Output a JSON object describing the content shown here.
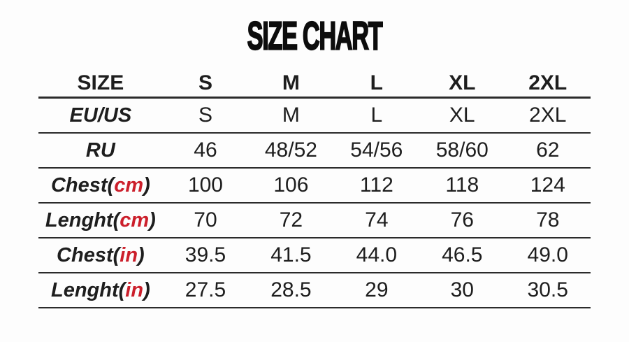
{
  "page": {
    "background": "#fdfdfd"
  },
  "colors": {
    "accent_red": "#cc1f2b",
    "text": "#1e1e1e",
    "line": "#2b2b2b"
  },
  "chart_data": {
    "type": "table",
    "title": "SIZE CHART",
    "header": {
      "label_column": "SIZE",
      "size_columns": [
        "S",
        "M",
        "L",
        "XL",
        "2XL"
      ]
    },
    "rows": [
      {
        "label": "EU/US",
        "unit": null,
        "label_red": true,
        "values": [
          "S",
          "M",
          "L",
          "XL",
          "2XL"
        ]
      },
      {
        "label": "RU",
        "unit": null,
        "label_red": true,
        "values": [
          "46",
          "48/52",
          "54/56",
          "58/60",
          "62"
        ]
      },
      {
        "label": "Chest",
        "unit": "cm",
        "label_red": false,
        "values": [
          "100",
          "106",
          "112",
          "118",
          "124"
        ]
      },
      {
        "label": "Lenght",
        "unit": "cm",
        "label_red": false,
        "values": [
          "70",
          "72",
          "74",
          "76",
          "78"
        ]
      },
      {
        "label": "Chest",
        "unit": "in",
        "label_red": false,
        "values": [
          "39.5",
          "41.5",
          "44.0",
          "46.5",
          "49.0"
        ]
      },
      {
        "label": "Lenght",
        "unit": "in",
        "label_red": false,
        "values": [
          "27.5",
          "28.5",
          "29",
          "30",
          "30.5"
        ]
      }
    ]
  }
}
